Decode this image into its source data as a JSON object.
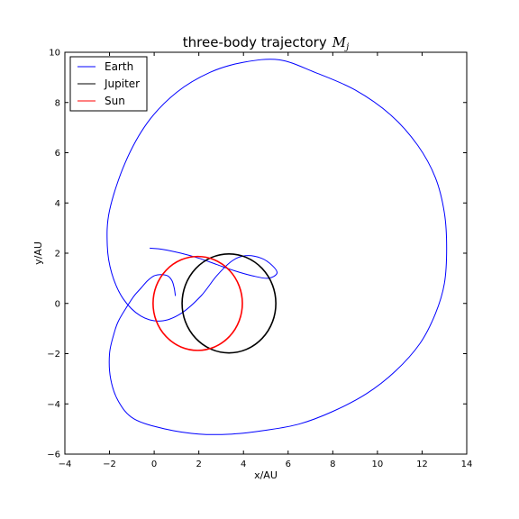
{
  "chart_data": {
    "type": "line",
    "title": "three-body trajectory",
    "title_math": "M",
    "title_math_sub": "j",
    "xlabel": "x/AU",
    "ylabel": "y/AU",
    "xlim": [
      -4,
      14
    ],
    "ylim": [
      -6,
      10
    ],
    "xticks": [
      -4,
      -2,
      0,
      2,
      4,
      6,
      8,
      10,
      12,
      14
    ],
    "yticks": [
      -6,
      -4,
      -2,
      0,
      2,
      4,
      6,
      8,
      10
    ],
    "grid": false,
    "legend_position": "top-left",
    "series": [
      {
        "name": "Earth",
        "color": "#0000ff",
        "x": [
          0.95,
          0.9,
          0.8,
          0.6,
          0.3,
          0.0,
          -0.3,
          -0.6,
          -0.9,
          -1.2,
          -1.6,
          -1.8,
          -2.0,
          -1.95,
          -1.6,
          -0.9,
          0.5,
          2.0,
          3.5,
          5.0,
          6.5,
          8.0,
          9.5,
          10.8,
          11.9,
          12.6,
          13.0,
          13.1,
          13.0,
          12.6,
          11.8,
          10.6,
          9.0,
          7.2,
          5.6,
          4.0,
          2.5,
          1.0,
          -0.3,
          -1.3,
          -2.0,
          -2.1,
          -1.9,
          -1.4,
          -0.6,
          0.3,
          1.2,
          2.1,
          2.8,
          3.5,
          4.1,
          4.8,
          5.3,
          5.5,
          5.1,
          4.4,
          3.6,
          2.8,
          2.0,
          1.2,
          0.4,
          -0.2
        ],
        "y": [
          0.3,
          0.6,
          0.9,
          1.1,
          1.15,
          1.1,
          0.9,
          0.6,
          0.3,
          -0.1,
          -0.7,
          -1.2,
          -2.0,
          -3.0,
          -3.9,
          -4.6,
          -5.0,
          -5.2,
          -5.2,
          -5.05,
          -4.8,
          -4.3,
          -3.6,
          -2.7,
          -1.6,
          -0.4,
          0.8,
          2.2,
          3.6,
          5.0,
          6.3,
          7.5,
          8.5,
          9.2,
          9.7,
          9.6,
          9.2,
          8.4,
          7.2,
          5.6,
          3.7,
          2.3,
          1.2,
          0.2,
          -0.5,
          -0.7,
          -0.4,
          0.3,
          1.1,
          1.7,
          1.9,
          1.8,
          1.5,
          1.2,
          1.0,
          1.1,
          1.3,
          1.55,
          1.8,
          2.0,
          2.15,
          2.2
        ]
      },
      {
        "name": "Jupiter",
        "color": "#000000",
        "shape": "ellipse",
        "center": [
          3.35,
          0.0
        ],
        "radii": [
          2.1,
          1.97
        ]
      },
      {
        "name": "Sun",
        "color": "#ff0000",
        "shape": "ellipse",
        "center": [
          1.95,
          0.0
        ],
        "radii": [
          2.0,
          1.87
        ]
      }
    ]
  }
}
